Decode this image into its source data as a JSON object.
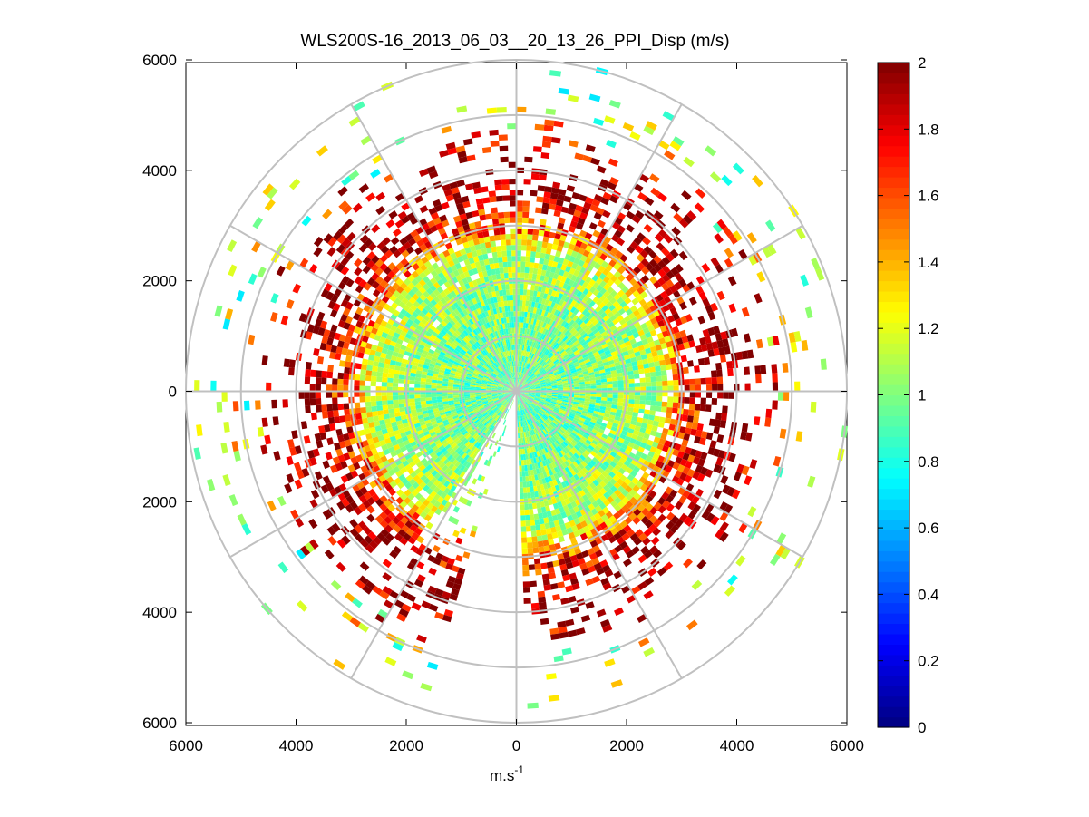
{
  "chart_data": {
    "type": "heatmap",
    "subtype": "polar-ppi",
    "title": "WLS200S-16_2013_06_03__20_13_26_PPI_Disp (m/s)",
    "xlabel": "m.s",
    "xlabel_superscript": "-1",
    "ylabel": "",
    "xlim": [
      -6000,
      6000
    ],
    "ylim": [
      -6000,
      6000
    ],
    "x_tick_values": [
      -6000,
      -4000,
      -2000,
      0,
      2000,
      4000,
      6000
    ],
    "x_tick_labels": [
      "6000",
      "4000",
      "2000",
      "0",
      "2000",
      "4000",
      "6000"
    ],
    "y_tick_values": [
      6000,
      4000,
      2000,
      0,
      -2000,
      -4000,
      -6000
    ],
    "y_tick_labels": [
      "6000",
      "4000",
      "2000",
      "0",
      "2000",
      "4000",
      "6000"
    ],
    "range_rings": [
      1000,
      2000,
      3000,
      4000,
      5000,
      6000
    ],
    "spokes_deg": [
      0,
      30,
      60,
      90,
      120,
      150,
      180,
      210,
      240,
      270,
      300,
      330
    ],
    "colorbar": {
      "colormap": "jet",
      "clim": [
        0,
        2
      ],
      "tick_values": [
        0,
        0.2,
        0.4,
        0.6,
        0.8,
        1,
        1.2,
        1.4,
        1.6,
        1.8,
        2
      ],
      "tick_labels": [
        "0",
        "0.2",
        "0.4",
        "0.6",
        "0.8",
        "1",
        "1.2",
        "1.4",
        "1.6",
        "1.8",
        "2"
      ]
    },
    "value_profile": {
      "range_m": [
        500,
        1500,
        2500,
        3000,
        3500,
        4000,
        4500,
        5000,
        5500
      ],
      "typical_value": [
        0.95,
        1.0,
        1.1,
        1.5,
        1.8,
        1.9,
        1.7,
        1.4,
        1.2
      ],
      "coverage": [
        1.0,
        1.0,
        0.93,
        0.75,
        0.5,
        0.3,
        0.15,
        0.08,
        0.05
      ]
    },
    "data_gaps": [
      {
        "azimuth_deg_from_north": [
          178,
          196
        ],
        "description": "no data"
      },
      {
        "azimuth_deg_from_north": [
          196,
          212
        ],
        "range_m": [
          0,
          3200
        ],
        "description": "sparse returns"
      }
    ]
  }
}
